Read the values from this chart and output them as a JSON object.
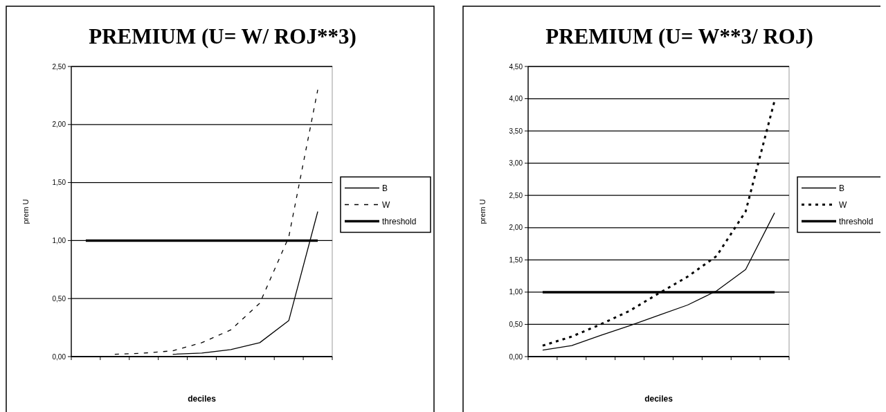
{
  "chart_data": [
    {
      "type": "line",
      "title": "PREMIUM (U= W/ ROJ**3)",
      "xlabel": "deciles",
      "ylabel": "prem U",
      "categories": [
        null,
        null,
        null,
        null,
        null,
        null,
        null,
        null,
        null
      ],
      "ylim": [
        0,
        2.5
      ],
      "yticks": [
        {
          "value": 0,
          "label": "0,00"
        },
        {
          "value": 0.5,
          "label": "0,50"
        },
        {
          "value": 1,
          "label": "1,00"
        },
        {
          "value": 1.5,
          "label": "1,50"
        },
        {
          "value": 2,
          "label": "2,00"
        },
        {
          "value": 2.5,
          "label": "2,50"
        }
      ],
      "grid": "y",
      "legend": "right",
      "marker": "none",
      "series": [
        {
          "name": "B",
          "color": "#000000",
          "line_style": "solid",
          "values": [
            null,
            null,
            null,
            0.02,
            0.03,
            0.06,
            0.12,
            0.31,
            1.25
          ]
        },
        {
          "name": "W",
          "color": "#000000",
          "line_style": "dashed",
          "values": [
            null,
            0.02,
            0.03,
            0.05,
            0.12,
            0.23,
            0.46,
            1.03,
            2.3
          ]
        },
        {
          "name": "threshold",
          "color": "#000000",
          "line_style": "solid",
          "values": [
            1,
            1,
            1,
            1,
            1,
            1,
            1,
            1,
            1
          ]
        }
      ]
    },
    {
      "type": "line",
      "title": "PREMIUM (U= W**3/ ROJ)",
      "xlabel": "deciles",
      "ylabel": "prem U",
      "categories": [
        null,
        null,
        null,
        null,
        null,
        null,
        null,
        null,
        null
      ],
      "ylim": [
        0,
        4.5
      ],
      "yticks": [
        {
          "value": 0,
          "label": "0,00"
        },
        {
          "value": 0.5,
          "label": "0,50"
        },
        {
          "value": 1,
          "label": "1,00"
        },
        {
          "value": 1.5,
          "label": "1,50"
        },
        {
          "value": 2,
          "label": "2,00"
        },
        {
          "value": 2.5,
          "label": "2,50"
        },
        {
          "value": 3,
          "label": "3,00"
        },
        {
          "value": 3.5,
          "label": "3,50"
        },
        {
          "value": 4,
          "label": "4,00"
        },
        {
          "value": 4.5,
          "label": "4,50"
        }
      ],
      "grid": "y",
      "legend": "right",
      "marker": "none",
      "series": [
        {
          "name": "B",
          "color": "#000000",
          "line_style": "solid",
          "values": [
            0.1,
            0.17,
            0.33,
            0.48,
            0.64,
            0.8,
            1.02,
            1.35,
            2.23
          ]
        },
        {
          "name": "W",
          "color": "#000000",
          "line_style": "dotted",
          "values": [
            0.17,
            0.31,
            0.5,
            0.71,
            0.98,
            1.24,
            1.56,
            2.25,
            3.97
          ]
        },
        {
          "name": "threshold",
          "color": "#000000",
          "line_style": "solid",
          "values": [
            1,
            1,
            1,
            1,
            1,
            1,
            1,
            1,
            1
          ]
        }
      ]
    }
  ]
}
